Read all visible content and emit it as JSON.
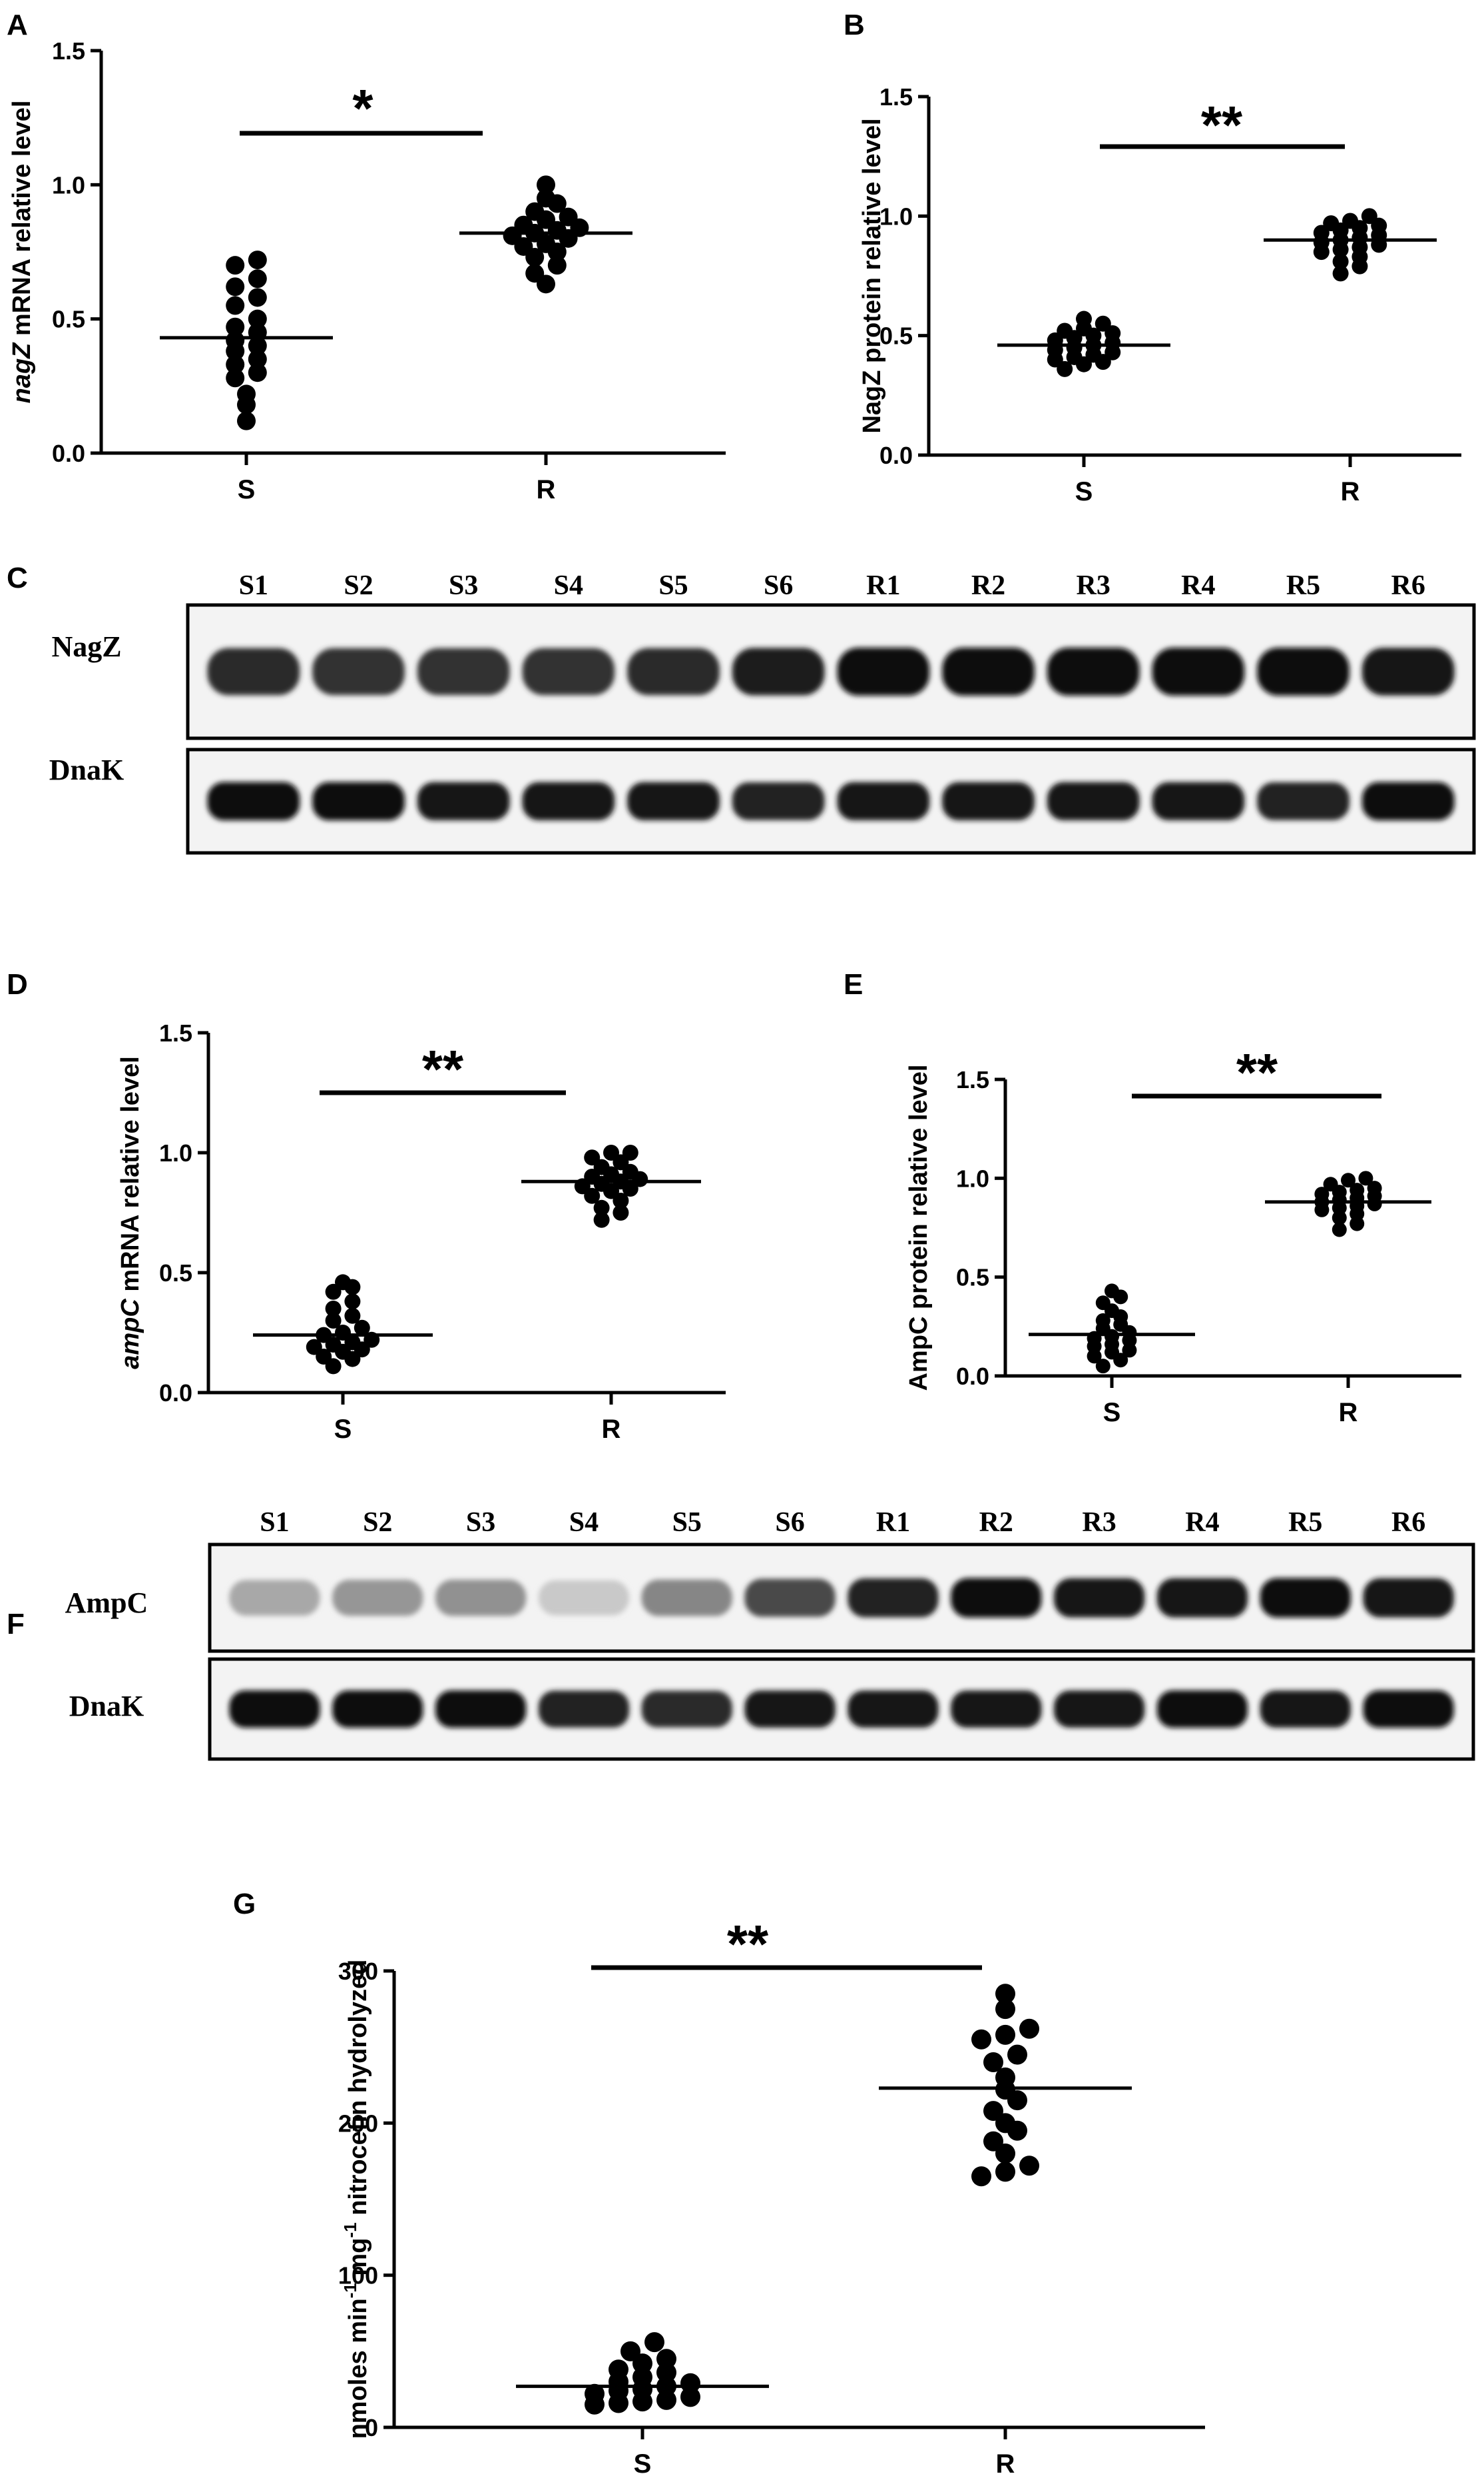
{
  "chart_data": [
    {
      "panel": "A",
      "type": "scatter",
      "ylabel": "nagZ mRNA relative level",
      "ylabel_italic": "nagZ",
      "ylabel_rest": " mRNA relative level",
      "categories": [
        "S",
        "R"
      ],
      "yticks": [
        "0.0",
        "0.5",
        "1.0",
        "1.5"
      ],
      "ylim": [
        0,
        1.5
      ],
      "significance": "*",
      "series": [
        {
          "name": "S",
          "mean": 0.43,
          "values": [
            0.12,
            0.18,
            0.22,
            0.28,
            0.3,
            0.33,
            0.35,
            0.38,
            0.4,
            0.42,
            0.45,
            0.47,
            0.5,
            0.55,
            0.58,
            0.62,
            0.65,
            0.7,
            0.72
          ]
        },
        {
          "name": "R",
          "mean": 0.82,
          "values": [
            0.63,
            0.67,
            0.7,
            0.73,
            0.75,
            0.77,
            0.78,
            0.8,
            0.81,
            0.82,
            0.83,
            0.84,
            0.85,
            0.87,
            0.88,
            0.9,
            0.93,
            0.95,
            1.0
          ]
        }
      ]
    },
    {
      "panel": "B",
      "type": "scatter",
      "ylabel": "NagZ protein relative level",
      "ylabel_italic": "",
      "ylabel_rest": "NagZ protein relative level",
      "categories": [
        "S",
        "R"
      ],
      "yticks": [
        "0.0",
        "0.5",
        "1.0",
        "1.5"
      ],
      "ylim": [
        0,
        1.5
      ],
      "significance": "**",
      "series": [
        {
          "name": "S",
          "mean": 0.46,
          "values": [
            0.36,
            0.38,
            0.39,
            0.4,
            0.41,
            0.42,
            0.43,
            0.44,
            0.45,
            0.46,
            0.47,
            0.48,
            0.49,
            0.5,
            0.51,
            0.52,
            0.53,
            0.55,
            0.57
          ]
        },
        {
          "name": "R",
          "mean": 0.9,
          "values": [
            0.76,
            0.79,
            0.81,
            0.83,
            0.85,
            0.86,
            0.87,
            0.88,
            0.89,
            0.9,
            0.91,
            0.92,
            0.93,
            0.94,
            0.95,
            0.96,
            0.97,
            0.98,
            1.0
          ]
        }
      ]
    },
    {
      "panel": "D",
      "type": "scatter",
      "ylabel": "ampC mRNA relative level",
      "ylabel_italic": "ampC",
      "ylabel_rest": " mRNA relative level",
      "categories": [
        "S",
        "R"
      ],
      "yticks": [
        "0.0",
        "0.5",
        "1.0",
        "1.5"
      ],
      "ylim": [
        0,
        1.5
      ],
      "significance": "**",
      "series": [
        {
          "name": "S",
          "mean": 0.24,
          "values": [
            0.11,
            0.14,
            0.15,
            0.17,
            0.18,
            0.19,
            0.2,
            0.21,
            0.22,
            0.24,
            0.25,
            0.27,
            0.3,
            0.32,
            0.35,
            0.38,
            0.42,
            0.44,
            0.46
          ]
        },
        {
          "name": "R",
          "mean": 0.88,
          "values": [
            0.72,
            0.75,
            0.77,
            0.8,
            0.82,
            0.84,
            0.85,
            0.86,
            0.87,
            0.88,
            0.89,
            0.9,
            0.91,
            0.92,
            0.94,
            0.96,
            0.98,
            1.0,
            1.0
          ]
        }
      ]
    },
    {
      "panel": "E",
      "type": "scatter",
      "ylabel": "AmpC protein relative level",
      "ylabel_italic": "",
      "ylabel_rest": "AmpC protein relative level",
      "categories": [
        "S",
        "R"
      ],
      "yticks": [
        "0.0",
        "0.5",
        "1.0",
        "1.5"
      ],
      "ylim": [
        0,
        1.5
      ],
      "significance": "**",
      "series": [
        {
          "name": "S",
          "mean": 0.21,
          "values": [
            0.05,
            0.08,
            0.1,
            0.12,
            0.13,
            0.15,
            0.16,
            0.18,
            0.19,
            0.2,
            0.22,
            0.24,
            0.26,
            0.28,
            0.3,
            0.33,
            0.37,
            0.4,
            0.43
          ]
        },
        {
          "name": "R",
          "mean": 0.88,
          "values": [
            0.74,
            0.77,
            0.8,
            0.82,
            0.84,
            0.85,
            0.86,
            0.87,
            0.88,
            0.89,
            0.9,
            0.91,
            0.92,
            0.93,
            0.94,
            0.95,
            0.97,
            0.99,
            1.0
          ]
        }
      ]
    },
    {
      "panel": "G",
      "type": "scatter",
      "ylabel": "nmoles min-1 mg-1 nitrocefin hydrolyzed",
      "ylabel_parts": [
        "nmoles min",
        "-1",
        " mg",
        "-1",
        " nitrocefin hydrolyzed"
      ],
      "categories": [
        "S",
        "R"
      ],
      "yticks": [
        "0",
        "100",
        "200",
        "300"
      ],
      "ylim": [
        0,
        300
      ],
      "significance": "**",
      "series": [
        {
          "name": "S",
          "mean": 27,
          "values": [
            15,
            16,
            17,
            18,
            20,
            22,
            24,
            25,
            27,
            29,
            30,
            33,
            36,
            38,
            42,
            45,
            50,
            56
          ]
        },
        {
          "name": "R",
          "mean": 223,
          "values": [
            165,
            168,
            172,
            180,
            188,
            195,
            200,
            208,
            215,
            222,
            230,
            240,
            245,
            255,
            258,
            262,
            275,
            285
          ]
        }
      ]
    }
  ],
  "blots": [
    {
      "panel": "C",
      "lanes": [
        "S1",
        "S2",
        "S3",
        "S4",
        "S5",
        "S6",
        "R1",
        "R2",
        "R3",
        "R4",
        "R5",
        "R6"
      ],
      "rows": [
        {
          "label": "NagZ",
          "intensity": [
            0.85,
            0.82,
            0.82,
            0.82,
            0.85,
            0.92,
            1.0,
            1.0,
            1.0,
            1.0,
            1.0,
            0.95
          ]
        },
        {
          "label": "DnaK",
          "intensity": [
            1.0,
            1.0,
            0.95,
            0.95,
            0.95,
            0.9,
            0.95,
            0.95,
            0.95,
            0.95,
            0.9,
            1.0
          ]
        }
      ]
    },
    {
      "panel": "F",
      "lanes": [
        "S1",
        "S2",
        "S3",
        "S4",
        "S5",
        "S6",
        "R1",
        "R2",
        "R3",
        "R4",
        "R5",
        "R6"
      ],
      "rows": [
        {
          "label": "AmpC",
          "intensity": [
            0.3,
            0.38,
            0.4,
            0.15,
            0.45,
            0.72,
            0.9,
            1.0,
            0.95,
            0.95,
            1.0,
            0.95
          ]
        },
        {
          "label": "DnaK",
          "intensity": [
            1.0,
            1.0,
            1.0,
            0.9,
            0.85,
            0.95,
            0.95,
            0.95,
            0.95,
            1.0,
            0.95,
            1.0
          ]
        }
      ]
    }
  ],
  "panel_labels": [
    "A",
    "B",
    "C",
    "D",
    "E",
    "F",
    "G"
  ]
}
